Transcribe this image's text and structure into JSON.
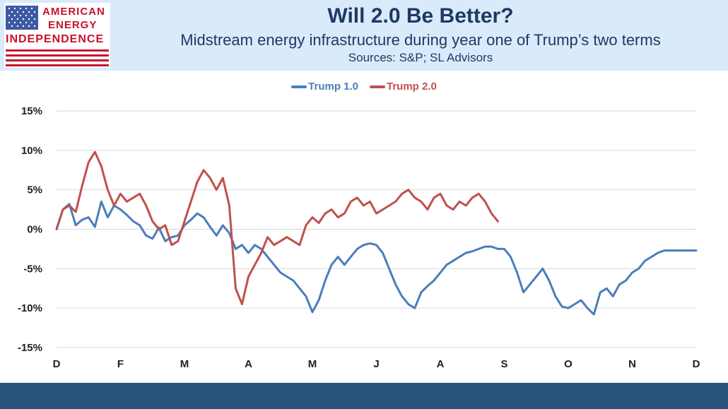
{
  "logo": {
    "line1": "AMERICAN",
    "line2": "ENERGY",
    "line3": "INDEPENDENCE",
    "flag_blue": "#3b5aa3",
    "flag_red": "#c8102e"
  },
  "header": {
    "title": "Will 2.0 Be Better?",
    "subtitle": "Midstream energy infrastructure during year one of Trump’s two terms",
    "sources": "Sources: S&P; SL Advisors"
  },
  "chart_data": {
    "type": "line",
    "title": "Will 2.0 Be Better?",
    "subtitle": "Midstream energy infrastructure during year one of Trump’s two terms",
    "xlabel": "",
    "ylabel": "",
    "x_tick_labels": [
      "D",
      "F",
      "M",
      "A",
      "M",
      "J",
      "A",
      "S",
      "O",
      "N",
      "D"
    ],
    "x_range_months": [
      0,
      10
    ],
    "ylim": [
      -15,
      15
    ],
    "y_tick_values": [
      -15,
      -10,
      -5,
      0,
      5,
      10,
      15
    ],
    "y_tick_labels": [
      "-15%",
      "-10%",
      "-5%",
      "0%",
      "5%",
      "10%",
      "15%"
    ],
    "grid": "horizontal",
    "legend_position": "top-center",
    "series": [
      {
        "name": "Trump 1.0",
        "color": "#4a7ebb",
        "x": [
          0,
          0.1,
          0.2,
          0.3,
          0.4,
          0.5,
          0.6,
          0.7,
          0.8,
          0.9,
          1.0,
          1.1,
          1.2,
          1.3,
          1.4,
          1.5,
          1.6,
          1.7,
          1.8,
          1.9,
          2.0,
          2.1,
          2.2,
          2.3,
          2.4,
          2.5,
          2.6,
          2.7,
          2.8,
          2.9,
          3.0,
          3.1,
          3.2,
          3.3,
          3.4,
          3.5,
          3.6,
          3.7,
          3.8,
          3.9,
          4.0,
          4.1,
          4.2,
          4.3,
          4.4,
          4.5,
          4.6,
          4.7,
          4.8,
          4.9,
          5.0,
          5.1,
          5.2,
          5.3,
          5.4,
          5.5,
          5.6,
          5.7,
          5.8,
          5.9,
          6.0,
          6.1,
          6.2,
          6.3,
          6.4,
          6.5,
          6.6,
          6.7,
          6.8,
          6.9,
          7.0,
          7.1,
          7.2,
          7.3,
          7.4,
          7.5,
          7.6,
          7.7,
          7.8,
          7.9,
          8.0,
          8.1,
          8.2,
          8.3,
          8.4,
          8.5,
          8.6,
          8.7,
          8.8,
          8.9,
          9.0,
          9.1,
          9.2,
          9.3,
          9.4,
          9.5,
          9.6,
          9.7,
          9.8,
          9.9,
          10.0
        ],
        "values": [
          0,
          2.5,
          3.2,
          0.5,
          1.2,
          1.5,
          0.3,
          3.5,
          1.5,
          3.0,
          2.5,
          1.8,
          1.0,
          0.5,
          -0.8,
          -1.2,
          0.2,
          -1.5,
          -1.0,
          -0.8,
          0.5,
          1.2,
          2.0,
          1.5,
          0.3,
          -0.8,
          0.5,
          -0.5,
          -2.5,
          -2.0,
          -3.0,
          -2.0,
          -2.5,
          -3.5,
          -4.5,
          -5.5,
          -6.0,
          -6.5,
          -7.5,
          -8.5,
          -10.5,
          -9.0,
          -6.5,
          -4.5,
          -3.5,
          -4.5,
          -3.5,
          -2.5,
          -2.0,
          -1.8,
          -2.0,
          -3.0,
          -5.0,
          -7.0,
          -8.5,
          -9.5,
          -10.0,
          -8.0,
          -7.2,
          -6.5,
          -5.5,
          -4.5,
          -4.0,
          -3.5,
          -3.0,
          -2.8,
          -2.5,
          -2.2,
          -2.2,
          -2.5,
          -2.5,
          -3.5,
          -5.5,
          -8.0,
          -7.0,
          -6.0,
          -5.0,
          -6.5,
          -8.5,
          -9.8,
          -10.0,
          -9.5,
          -9.0,
          -10.0,
          -10.8,
          -8.0,
          -7.5,
          -8.5,
          -7.0,
          -6.5,
          -5.5,
          -5.0,
          -4.0,
          -3.5,
          -3.0,
          -2.7,
          -2.7,
          -2.7,
          -2.7,
          -2.7,
          -2.7
        ]
      },
      {
        "name": "Trump 2.0",
        "color": "#c0504d",
        "x": [
          0,
          0.1,
          0.2,
          0.3,
          0.4,
          0.5,
          0.6,
          0.7,
          0.8,
          0.9,
          1.0,
          1.1,
          1.2,
          1.3,
          1.4,
          1.5,
          1.6,
          1.7,
          1.8,
          1.9,
          2.0,
          2.1,
          2.2,
          2.3,
          2.4,
          2.5,
          2.6,
          2.7,
          2.8,
          2.9,
          3.0,
          3.1,
          3.2,
          3.3,
          3.4,
          3.5,
          3.6,
          3.7,
          3.8,
          3.9,
          4.0,
          4.1,
          4.2,
          4.3,
          4.4,
          4.5,
          4.6,
          4.7,
          4.8,
          4.9,
          5.0,
          5.1,
          5.2,
          5.3,
          5.4,
          5.5,
          5.6,
          5.7,
          5.8,
          5.9,
          6.0,
          6.1,
          6.2,
          6.3,
          6.4,
          6.5,
          6.6,
          6.7,
          6.8,
          6.9
        ],
        "values": [
          0,
          2.5,
          3.0,
          2.2,
          5.5,
          8.5,
          9.8,
          8.0,
          5.0,
          3.0,
          4.5,
          3.5,
          4.0,
          4.5,
          3.0,
          1.0,
          0.0,
          0.5,
          -2.0,
          -1.5,
          1.0,
          3.5,
          6.0,
          7.5,
          6.5,
          5.0,
          6.5,
          3.0,
          -7.5,
          -9.5,
          -6.0,
          -4.5,
          -3.0,
          -1.0,
          -2.0,
          -1.5,
          -1.0,
          -1.5,
          -2.0,
          0.5,
          1.5,
          0.8,
          2.0,
          2.5,
          1.5,
          2.0,
          3.5,
          4.0,
          3.0,
          3.5,
          2.0,
          2.5,
          3.0,
          3.5,
          4.5,
          5.0,
          4.0,
          3.5,
          2.5,
          4.0,
          4.5,
          3.0,
          2.5,
          3.5,
          3.0,
          4.0,
          4.5,
          3.5,
          2.0,
          1.0
        ]
      }
    ]
  }
}
